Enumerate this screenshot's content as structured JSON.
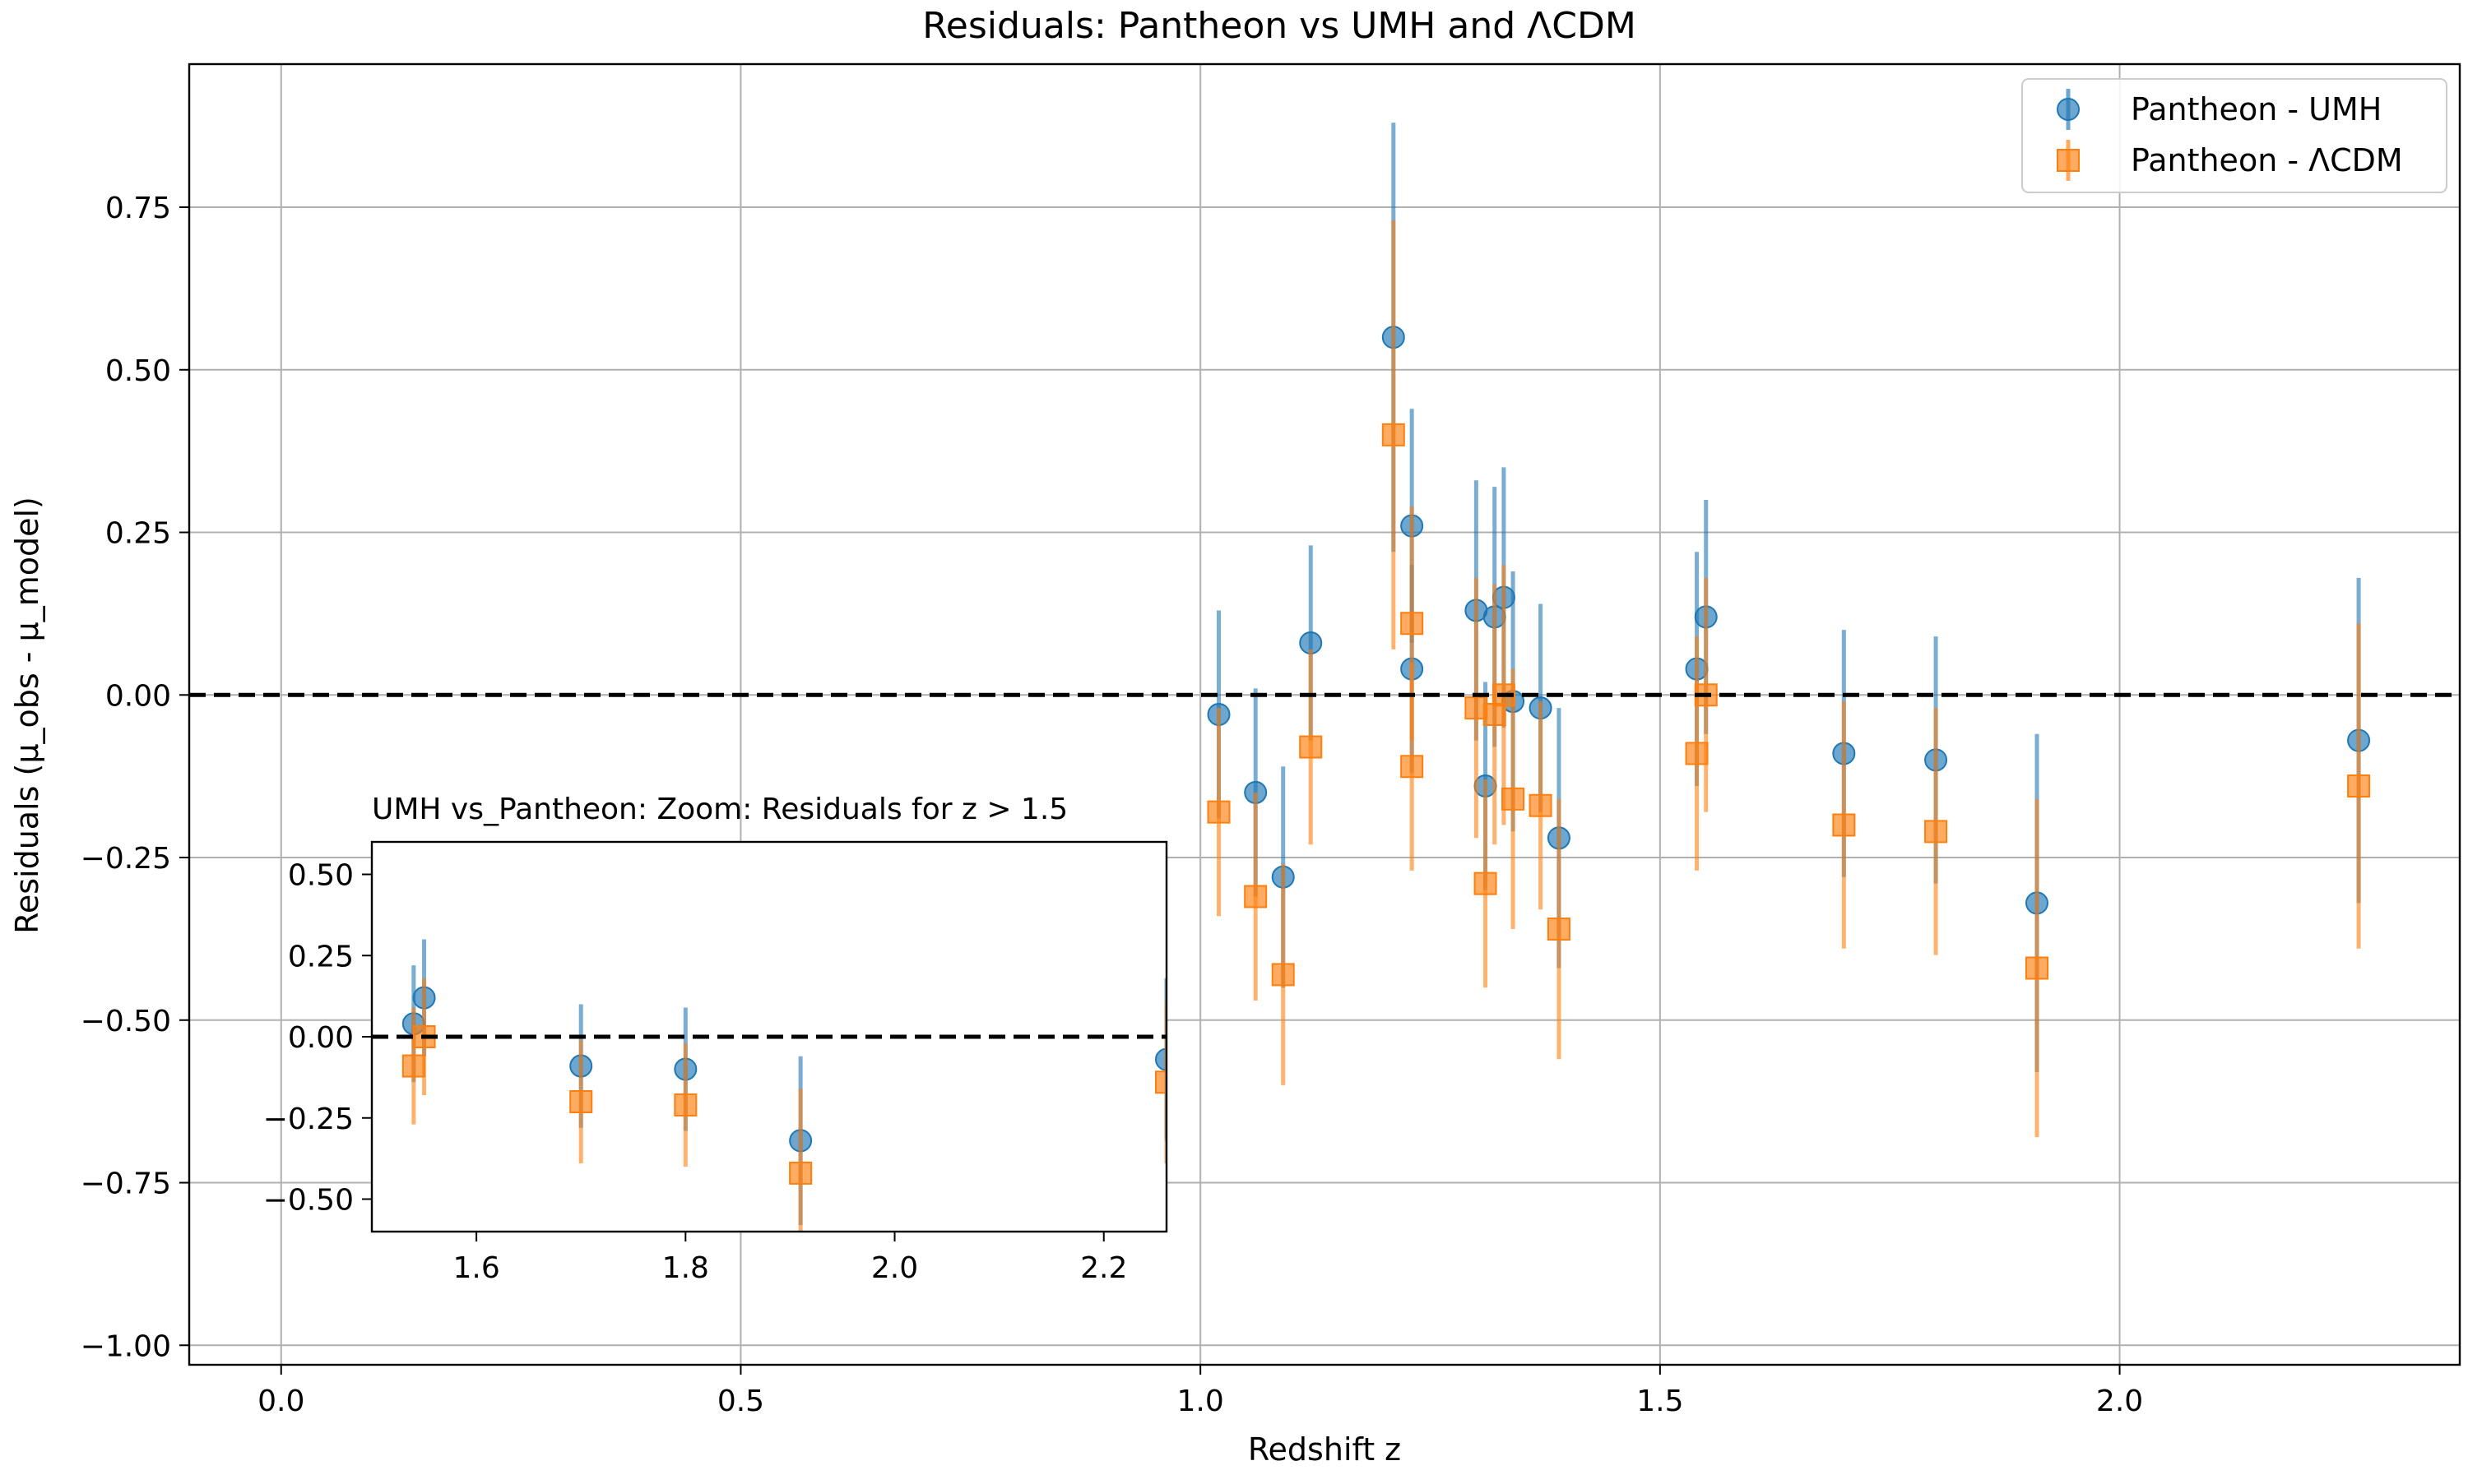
{
  "chart_data": {
    "type": "scatter",
    "title": "Residuals: Pantheon vs UMH and ΛCDM",
    "xlabel": "Redshift z",
    "ylabel": "Residuals (μ_obs - μ_model)",
    "xlim": [
      -0.1,
      2.37
    ],
    "ylim": [
      -1.03,
      0.97
    ],
    "xticks": [
      0.0,
      0.5,
      1.0,
      1.5,
      2.0
    ],
    "xtick_labels": [
      "0.0",
      "0.5",
      "1.0",
      "1.5",
      "2.0"
    ],
    "yticks": [
      -1.0,
      -0.75,
      -0.5,
      -0.25,
      0.0,
      0.25,
      0.5,
      0.75
    ],
    "ytick_labels": [
      "−1.00",
      "−0.75",
      "−0.50",
      "−0.25",
      "0.00",
      "0.25",
      "0.50",
      "0.75"
    ],
    "grid": true,
    "legend_position": "top-right",
    "reference_line": {
      "y": 0.0,
      "style": "dashed",
      "color": "#000000"
    },
    "series": [
      {
        "name": "Pantheon - UMH",
        "marker": "circle",
        "color": "#1f77b4",
        "points": [
          {
            "x": 1.02,
            "y": -0.03,
            "err": 0.16
          },
          {
            "x": 1.06,
            "y": -0.15,
            "err": 0.16
          },
          {
            "x": 1.09,
            "y": -0.28,
            "err": 0.17
          },
          {
            "x": 1.12,
            "y": 0.08,
            "err": 0.15
          },
          {
            "x": 1.21,
            "y": 0.55,
            "err": 0.33
          },
          {
            "x": 1.23,
            "y": 0.26,
            "err": 0.18
          },
          {
            "x": 1.23,
            "y": 0.04,
            "err": 0.16
          },
          {
            "x": 1.3,
            "y": 0.13,
            "err": 0.2
          },
          {
            "x": 1.31,
            "y": -0.14,
            "err": 0.16
          },
          {
            "x": 1.32,
            "y": 0.12,
            "err": 0.2
          },
          {
            "x": 1.33,
            "y": 0.15,
            "err": 0.2
          },
          {
            "x": 1.34,
            "y": -0.01,
            "err": 0.2
          },
          {
            "x": 1.37,
            "y": -0.02,
            "err": 0.16
          },
          {
            "x": 1.39,
            "y": -0.22,
            "err": 0.2
          },
          {
            "x": 1.54,
            "y": 0.04,
            "err": 0.18
          },
          {
            "x": 1.55,
            "y": 0.12,
            "err": 0.18
          },
          {
            "x": 1.7,
            "y": -0.09,
            "err": 0.19
          },
          {
            "x": 1.8,
            "y": -0.1,
            "err": 0.19
          },
          {
            "x": 1.91,
            "y": -0.32,
            "err": 0.26
          },
          {
            "x": 2.26,
            "y": -0.07,
            "err": 0.25
          }
        ]
      },
      {
        "name": "Pantheon - ΛCDM",
        "marker": "square",
        "color": "#ff7f0e",
        "points": [
          {
            "x": 1.02,
            "y": -0.18,
            "err": 0.16
          },
          {
            "x": 1.06,
            "y": -0.31,
            "err": 0.16
          },
          {
            "x": 1.09,
            "y": -0.43,
            "err": 0.17
          },
          {
            "x": 1.12,
            "y": -0.08,
            "err": 0.15
          },
          {
            "x": 1.21,
            "y": 0.4,
            "err": 0.33
          },
          {
            "x": 1.23,
            "y": 0.11,
            "err": 0.18
          },
          {
            "x": 1.23,
            "y": -0.11,
            "err": 0.16
          },
          {
            "x": 1.3,
            "y": -0.02,
            "err": 0.2
          },
          {
            "x": 1.31,
            "y": -0.29,
            "err": 0.16
          },
          {
            "x": 1.32,
            "y": -0.03,
            "err": 0.2
          },
          {
            "x": 1.33,
            "y": 0.0,
            "err": 0.2
          },
          {
            "x": 1.34,
            "y": -0.16,
            "err": 0.2
          },
          {
            "x": 1.37,
            "y": -0.17,
            "err": 0.16
          },
          {
            "x": 1.39,
            "y": -0.36,
            "err": 0.2
          },
          {
            "x": 1.54,
            "y": -0.09,
            "err": 0.18
          },
          {
            "x": 1.55,
            "y": 0.0,
            "err": 0.18
          },
          {
            "x": 1.7,
            "y": -0.2,
            "err": 0.19
          },
          {
            "x": 1.8,
            "y": -0.21,
            "err": 0.19
          },
          {
            "x": 1.91,
            "y": -0.42,
            "err": 0.26
          },
          {
            "x": 2.26,
            "y": -0.14,
            "err": 0.25
          }
        ]
      }
    ],
    "inset": {
      "title": "UMH vs_Pantheon: Zoom: Residuals for z > 1.5",
      "xlim": [
        1.5,
        2.26
      ],
      "ylim": [
        -0.6,
        0.6
      ],
      "xticks": [
        1.6,
        1.8,
        2.0,
        2.2
      ],
      "xtick_labels": [
        "1.6",
        "1.8",
        "2.0",
        "2.2"
      ],
      "yticks": [
        -0.5,
        -0.25,
        0.0,
        0.25,
        0.5
      ],
      "ytick_labels": [
        "−0.50",
        "−0.25",
        "0.00",
        "0.25",
        "0.50"
      ],
      "grid": false,
      "series": [
        {
          "name": "Pantheon - UMH",
          "marker": "circle",
          "color": "#1f77b4",
          "points": [
            {
              "x": 1.54,
              "y": 0.04,
              "err": 0.18
            },
            {
              "x": 1.55,
              "y": 0.12,
              "err": 0.18
            },
            {
              "x": 1.7,
              "y": -0.09,
              "err": 0.19
            },
            {
              "x": 1.8,
              "y": -0.1,
              "err": 0.19
            },
            {
              "x": 1.91,
              "y": -0.32,
              "err": 0.26
            },
            {
              "x": 2.26,
              "y": -0.07,
              "err": 0.25
            }
          ]
        },
        {
          "name": "Pantheon - ΛCDM",
          "marker": "square",
          "color": "#ff7f0e",
          "points": [
            {
              "x": 1.54,
              "y": -0.09,
              "err": 0.18
            },
            {
              "x": 1.55,
              "y": 0.0,
              "err": 0.18
            },
            {
              "x": 1.7,
              "y": -0.2,
              "err": 0.19
            },
            {
              "x": 1.8,
              "y": -0.21,
              "err": 0.19
            },
            {
              "x": 1.91,
              "y": -0.42,
              "err": 0.26
            },
            {
              "x": 2.26,
              "y": -0.14,
              "err": 0.25
            }
          ]
        }
      ]
    }
  }
}
